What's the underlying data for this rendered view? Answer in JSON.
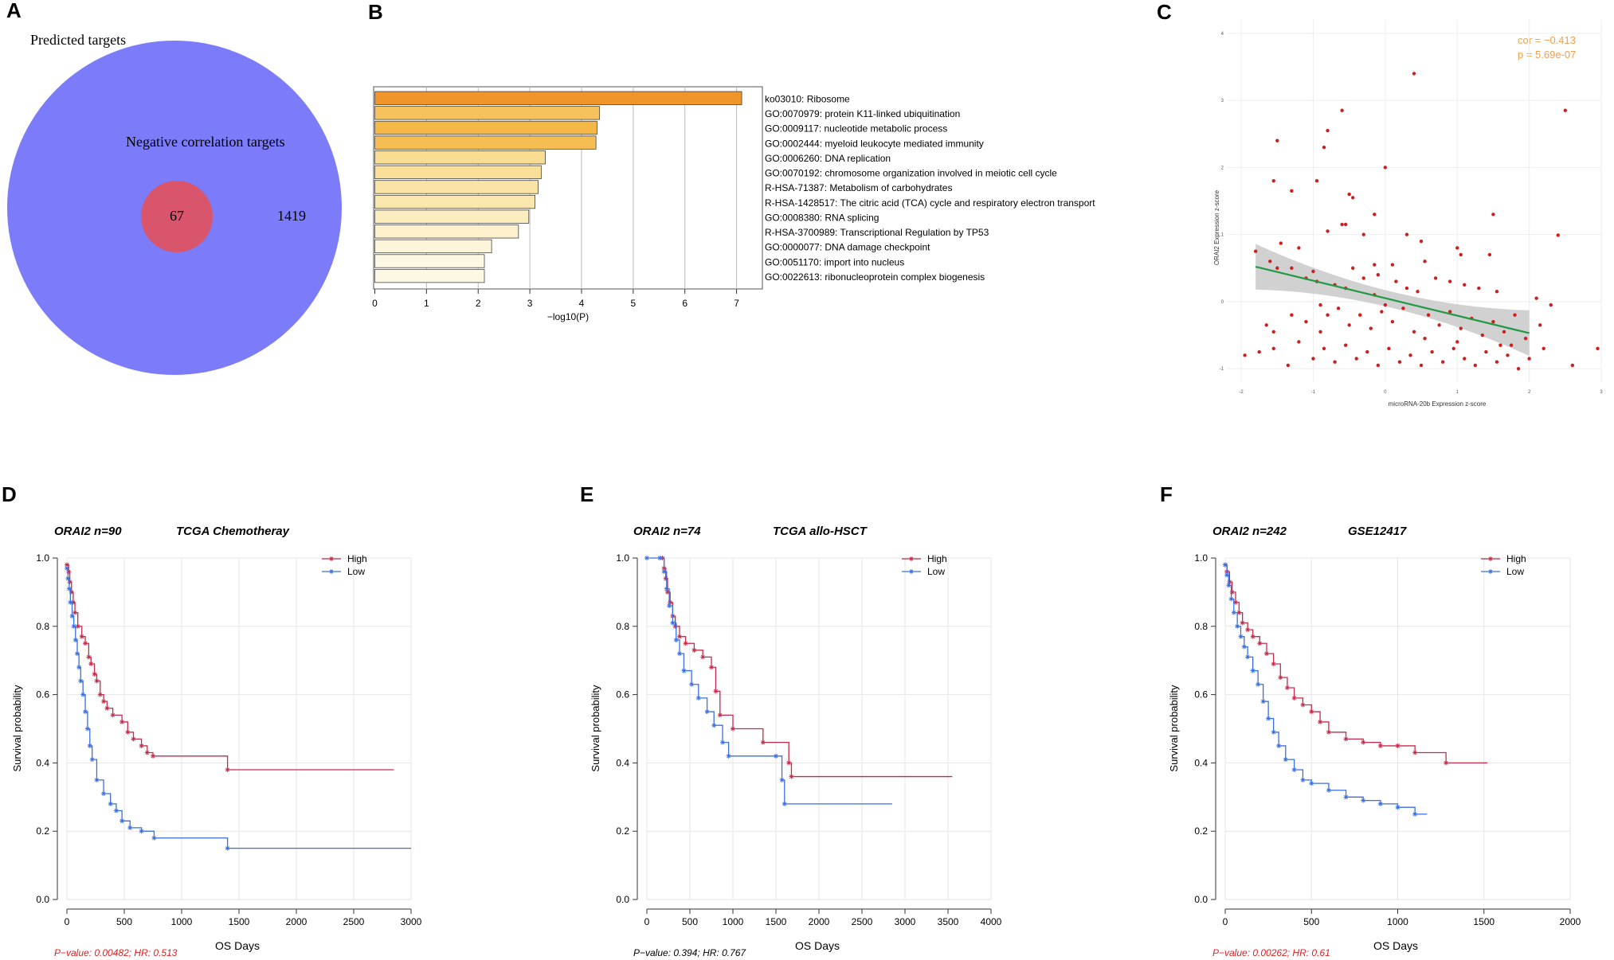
{
  "figure": {
    "panel_letters": [
      "A",
      "B",
      "C",
      "D",
      "E",
      "F"
    ]
  },
  "chart_data": [
    {
      "panel": "A",
      "type": "venn",
      "labels": {
        "outer": "Predicted targets",
        "middle": "Negative correlation targets"
      },
      "counts": {
        "overlap": "67",
        "only_middle": "1419"
      },
      "colors": {
        "outer": "#7c7cfa",
        "inner": "#d9556b"
      }
    },
    {
      "panel": "B",
      "type": "bar",
      "orientation": "horizontal",
      "xlabel": "−log10(P)",
      "xlim": [
        0,
        7.5
      ],
      "xticks": [
        0,
        1,
        2,
        3,
        4,
        5,
        6,
        7
      ],
      "categories": [
        "ko03010: Ribosome",
        "GO:0070979: protein K11-linked ubiquitination",
        "GO:0009117: nucleotide metabolic process",
        "GO:0002444: myeloid leukocyte mediated immunity",
        "GO:0006260: DNA replication",
        "GO:0070192: chromosome organization involved in meiotic cell cycle",
        "R-HSA-71387: Metabolism of carbohydrates",
        "R-HSA-1428517: The citric acid (TCA) cycle and respiratory electron transport",
        "GO:0008380: RNA splicing",
        "R-HSA-3700989: Transcriptional Regulation by TP53",
        "GO:0000077: DNA damage checkpoint",
        "GO:0051170: import into nucleus",
        "GO:0022613: ribonucleoprotein complex biogenesis"
      ],
      "values": [
        7.1,
        4.35,
        4.3,
        4.28,
        3.3,
        3.22,
        3.16,
        3.1,
        2.98,
        2.78,
        2.26,
        2.12,
        2.12
      ],
      "colors": [
        "#f0952a",
        "#f6c25e",
        "#f5b846",
        "#f6bd52",
        "#f9dd92",
        "#f9df98",
        "#fae4a5",
        "#fae7ad",
        "#fbedc0",
        "#fcf1cc",
        "#fdf5d9",
        "#fdf8e3",
        "#fdf8e3"
      ]
    },
    {
      "panel": "C",
      "type": "scatter",
      "xlabel": "microRNA-20b Expression z-score",
      "ylabel": "ORAI2 Expression z-score",
      "annotation": [
        "cor = −0.413",
        "p = 5.69e-07"
      ],
      "xlim": [
        -2.2,
        3.0
      ],
      "ylim": [
        -1.2,
        4.2
      ],
      "xticks": [
        -2,
        -1,
        0,
        1,
        2,
        3
      ],
      "yticks": [
        -1,
        0,
        1,
        2,
        3,
        4
      ],
      "fit": {
        "x": [
          -1.8,
          2.0
        ],
        "y": [
          0.52,
          -0.47
        ]
      },
      "colors": {
        "points": "#cc1f1f",
        "fit": "#229944",
        "band": "#c9c9c9"
      },
      "points": [
        [
          0.4,
          3.4
        ],
        [
          -0.6,
          2.85
        ],
        [
          2.5,
          2.85
        ],
        [
          -1.5,
          2.4
        ],
        [
          -0.8,
          2.55
        ],
        [
          -0.85,
          2.3
        ],
        [
          -1.55,
          1.8
        ],
        [
          -1.3,
          1.65
        ],
        [
          -0.95,
          1.8
        ],
        [
          -0.45,
          1.55
        ],
        [
          -0.5,
          1.6
        ],
        [
          0.0,
          2.0
        ],
        [
          -0.15,
          1.3
        ],
        [
          1.5,
          1.3
        ],
        [
          2.4,
          0.99
        ],
        [
          -1.45,
          0.87
        ],
        [
          -1.2,
          0.8
        ],
        [
          -0.8,
          1.05
        ],
        [
          -0.6,
          1.15
        ],
        [
          -0.55,
          1.15
        ],
        [
          -0.3,
          1.0
        ],
        [
          0.3,
          1.0
        ],
        [
          0.5,
          0.9
        ],
        [
          1.0,
          0.8
        ],
        [
          1.45,
          0.7
        ],
        [
          1.05,
          0.7
        ],
        [
          0.55,
          0.6
        ],
        [
          0.1,
          0.55
        ],
        [
          -0.15,
          0.55
        ],
        [
          -0.45,
          0.5
        ],
        [
          -1.8,
          0.75
        ],
        [
          -1.6,
          0.6
        ],
        [
          -1.5,
          0.5
        ],
        [
          -1.3,
          0.5
        ],
        [
          -1.0,
          0.45
        ],
        [
          -1.1,
          0.35
        ],
        [
          -0.95,
          0.3
        ],
        [
          -0.7,
          0.25
        ],
        [
          -0.55,
          0.2
        ],
        [
          -0.3,
          0.35
        ],
        [
          -0.1,
          0.4
        ],
        [
          0.15,
          0.3
        ],
        [
          0.3,
          0.2
        ],
        [
          0.45,
          0.15
        ],
        [
          0.7,
          0.35
        ],
        [
          0.9,
          0.3
        ],
        [
          1.1,
          0.25
        ],
        [
          1.3,
          0.2
        ],
        [
          1.55,
          0.15
        ],
        [
          2.1,
          0.05
        ],
        [
          2.3,
          -0.05
        ],
        [
          -1.65,
          -0.35
        ],
        [
          -1.55,
          -0.45
        ],
        [
          -1.3,
          -0.2
        ],
        [
          -1.1,
          -0.3
        ],
        [
          -0.9,
          -0.05
        ],
        [
          -0.8,
          -0.2
        ],
        [
          -0.65,
          -0.1
        ],
        [
          -0.5,
          -0.35
        ],
        [
          -0.35,
          -0.2
        ],
        [
          -0.2,
          -0.4
        ],
        [
          -0.05,
          -0.15
        ],
        [
          0.1,
          -0.3
        ],
        [
          0.25,
          -0.1
        ],
        [
          0.4,
          -0.45
        ],
        [
          0.6,
          -0.2
        ],
        [
          0.75,
          -0.35
        ],
        [
          0.9,
          -0.15
        ],
        [
          1.05,
          -0.4
        ],
        [
          1.2,
          -0.25
        ],
        [
          1.35,
          -0.5
        ],
        [
          1.5,
          -0.3
        ],
        [
          1.65,
          -0.45
        ],
        [
          1.8,
          -0.2
        ],
        [
          1.95,
          -0.55
        ],
        [
          2.15,
          -0.35
        ],
        [
          -1.75,
          -0.75
        ],
        [
          -1.55,
          -0.7
        ],
        [
          -1.35,
          -0.95
        ],
        [
          -1.2,
          -0.6
        ],
        [
          -1.0,
          -0.85
        ],
        [
          -0.85,
          -0.7
        ],
        [
          -0.7,
          -0.9
        ],
        [
          -0.55,
          -0.65
        ],
        [
          -0.4,
          -0.85
        ],
        [
          -0.25,
          -0.75
        ],
        [
          -0.1,
          -0.95
        ],
        [
          0.05,
          -0.7
        ],
        [
          0.2,
          -0.9
        ],
        [
          0.35,
          -0.8
        ],
        [
          0.5,
          -0.95
        ],
        [
          0.65,
          -0.75
        ],
        [
          0.8,
          -0.9
        ],
        [
          0.95,
          -0.7
        ],
        [
          1.1,
          -0.85
        ],
        [
          1.25,
          -0.95
        ],
        [
          1.4,
          -0.75
        ],
        [
          1.55,
          -0.9
        ],
        [
          1.7,
          -0.8
        ],
        [
          1.85,
          -1.0
        ],
        [
          2.0,
          -0.85
        ],
        [
          2.2,
          -0.7
        ],
        [
          2.6,
          -0.95
        ],
        [
          2.95,
          -0.7
        ],
        [
          -1.95,
          -0.8
        ],
        [
          -0.15,
          0.1
        ],
        [
          0.0,
          -0.05
        ],
        [
          1.6,
          -0.65
        ],
        [
          1.75,
          -0.65
        ],
        [
          -0.9,
          -0.45
        ],
        [
          0.55,
          -0.55
        ],
        [
          1.0,
          -0.6
        ]
      ]
    },
    {
      "panel": "D",
      "type": "line",
      "subtype": "kaplan-meier",
      "gene": "ORAI2 n=90",
      "cohort": "TCGA Chemotheray",
      "xlabel": "OS Days",
      "ylabel": "Survival probability",
      "xlim": [
        0,
        3000
      ],
      "xticks": [
        0,
        500,
        1000,
        1500,
        2000,
        2500,
        3000
      ],
      "ylim": [
        0,
        1
      ],
      "yticks": [
        "0.0",
        "0.2",
        "0.4",
        "0.6",
        "0.8",
        "1.0"
      ],
      "pvalue_text": "P−value: 0.00482; HR: 0.513",
      "pvalue_color": "#e02020",
      "legend": [
        "High",
        "Low"
      ],
      "series": [
        {
          "name": "High",
          "color": "#c62a4a",
          "x": [
            0,
            15,
            25,
            40,
            55,
            70,
            95,
            130,
            160,
            190,
            210,
            240,
            260,
            290,
            320,
            350,
            400,
            480,
            530,
            580,
            650,
            700,
            750,
            1400,
            2850
          ],
          "y": [
            0.98,
            0.96,
            0.93,
            0.9,
            0.87,
            0.84,
            0.8,
            0.77,
            0.75,
            0.71,
            0.69,
            0.66,
            0.64,
            0.6,
            0.58,
            0.56,
            0.54,
            0.52,
            0.49,
            0.47,
            0.45,
            0.43,
            0.42,
            0.38,
            0.38
          ]
        },
        {
          "name": "Low",
          "color": "#3a6fe0",
          "x": [
            0,
            10,
            20,
            30,
            45,
            60,
            75,
            90,
            105,
            120,
            140,
            160,
            180,
            200,
            220,
            260,
            320,
            380,
            430,
            480,
            550,
            650,
            760,
            1400,
            3000
          ],
          "y": [
            0.97,
            0.94,
            0.91,
            0.87,
            0.83,
            0.8,
            0.76,
            0.72,
            0.68,
            0.64,
            0.6,
            0.55,
            0.5,
            0.45,
            0.41,
            0.35,
            0.31,
            0.28,
            0.26,
            0.23,
            0.21,
            0.2,
            0.18,
            0.15,
            0.15
          ]
        }
      ]
    },
    {
      "panel": "E",
      "type": "line",
      "subtype": "kaplan-meier",
      "gene": "ORAI2 n=74",
      "cohort": "TCGA allo-HSCT",
      "xlabel": "OS Days",
      "ylabel": "Survival probability",
      "xlim": [
        0,
        4000
      ],
      "xticks": [
        0,
        500,
        1000,
        1500,
        2000,
        2500,
        3000,
        3500,
        4000
      ],
      "ylim": [
        0,
        1
      ],
      "yticks": [
        "0.0",
        "0.2",
        "0.4",
        "0.6",
        "0.8",
        "1.0"
      ],
      "pvalue_text": "P−value: 0.394; HR: 0.767",
      "pvalue_color": "#000000",
      "legend": [
        "High",
        "Low"
      ],
      "series": [
        {
          "name": "High",
          "color": "#c62a4a",
          "x": [
            180,
            200,
            220,
            240,
            270,
            300,
            330,
            380,
            450,
            550,
            650,
            750,
            800,
            850,
            1000,
            1350,
            1650,
            1680,
            3550
          ],
          "y": [
            1.0,
            0.97,
            0.94,
            0.9,
            0.87,
            0.83,
            0.8,
            0.77,
            0.75,
            0.73,
            0.71,
            0.68,
            0.61,
            0.54,
            0.5,
            0.46,
            0.4,
            0.36,
            0.36
          ]
        },
        {
          "name": "Low",
          "color": "#3a6fe0",
          "x": [
            0,
            150,
            200,
            230,
            260,
            300,
            340,
            380,
            430,
            520,
            600,
            700,
            780,
            880,
            950,
            1500,
            1570,
            1600,
            2850
          ],
          "y": [
            1.0,
            1.0,
            0.96,
            0.91,
            0.86,
            0.81,
            0.76,
            0.72,
            0.67,
            0.63,
            0.59,
            0.55,
            0.51,
            0.46,
            0.42,
            0.42,
            0.35,
            0.28,
            0.28
          ]
        }
      ]
    },
    {
      "panel": "F",
      "type": "line",
      "subtype": "kaplan-meier",
      "gene": "ORAI2 n=242",
      "cohort": "GSE12417",
      "xlabel": "OS Days",
      "ylabel": "Survival probability",
      "xlim": [
        0,
        2000
      ],
      "xticks": [
        0,
        500,
        1000,
        1500,
        2000
      ],
      "ylim": [
        0,
        1
      ],
      "yticks": [
        "0.0",
        "0.2",
        "0.4",
        "0.6",
        "0.8",
        "1.0"
      ],
      "pvalue_text": "P−value: 0.00262; HR: 0.61",
      "pvalue_color": "#e02020",
      "legend": [
        "High",
        "Low"
      ],
      "series": [
        {
          "name": "High",
          "color": "#c62a4a",
          "x": [
            0,
            10,
            25,
            40,
            60,
            80,
            100,
            130,
            160,
            200,
            240,
            280,
            320,
            360,
            400,
            450,
            500,
            550,
            600,
            700,
            800,
            900,
            1000,
            1100,
            1280,
            1520
          ],
          "y": [
            0.98,
            0.96,
            0.93,
            0.9,
            0.87,
            0.84,
            0.81,
            0.79,
            0.77,
            0.75,
            0.72,
            0.69,
            0.65,
            0.62,
            0.59,
            0.57,
            0.55,
            0.52,
            0.49,
            0.47,
            0.46,
            0.45,
            0.45,
            0.43,
            0.4,
            0.4
          ]
        },
        {
          "name": "Low",
          "color": "#3a6fe0",
          "x": [
            0,
            10,
            20,
            35,
            50,
            70,
            90,
            110,
            130,
            160,
            190,
            220,
            250,
            280,
            310,
            350,
            400,
            450,
            500,
            600,
            700,
            800,
            900,
            1000,
            1100,
            1170
          ],
          "y": [
            0.98,
            0.95,
            0.92,
            0.88,
            0.84,
            0.8,
            0.77,
            0.74,
            0.71,
            0.67,
            0.63,
            0.58,
            0.53,
            0.49,
            0.45,
            0.41,
            0.38,
            0.35,
            0.34,
            0.32,
            0.3,
            0.29,
            0.28,
            0.27,
            0.25,
            0.25
          ]
        }
      ]
    }
  ]
}
